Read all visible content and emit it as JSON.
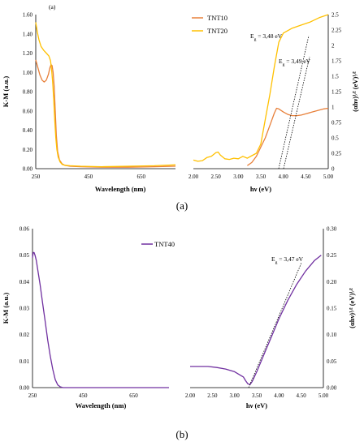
{
  "panel_a": {
    "caption": "(a)",
    "inset_label": "(a)",
    "legend": [
      "TNT10",
      "TNT20"
    ],
    "left": {
      "xlabel": "Wavelength (nm)",
      "ylabel": "K-M (a.u.)",
      "xticks": [
        "250",
        "450",
        "650"
      ],
      "yticks": [
        "0.00",
        "0.20",
        "0.40",
        "0.60",
        "0.80",
        "1.00",
        "1.20",
        "1.40",
        "1.60"
      ]
    },
    "right": {
      "xlabel": "hν (eV)",
      "ylabel": "(αhν)¹⁄² (eV)¹⁄²",
      "xticks": [
        "2.00",
        "2.50",
        "3.00",
        "3.50",
        "4.00",
        "4.50",
        "5.00"
      ],
      "yticks": [
        "0",
        "0.25",
        "0.5",
        "0.75",
        "1",
        "1.25",
        "1.5",
        "1.75",
        "2",
        "2.25",
        "2.5"
      ],
      "ann1": "E",
      "ann1_sub": "g",
      "ann1_val": " = 3,48 eV",
      "ann2": "E",
      "ann2_sub": "g",
      "ann2_val": " = 3,49 eV"
    }
  },
  "panel_b": {
    "caption": "(b)",
    "legend": [
      "TNT40"
    ],
    "left": {
      "xlabel": "Wavelength (nm)",
      "ylabel": "K-M (a.u.)",
      "xticks": [
        "250",
        "450",
        "650"
      ],
      "yticks": [
        "0.00",
        "0.01",
        "0.02",
        "0.03",
        "0.04",
        "0.05",
        "0.06"
      ]
    },
    "right": {
      "xlabel": "hν (eV)",
      "ylabel": "(αhν)¹⁄² (eV)¹⁄²",
      "xticks": [
        "2.00",
        "2.50",
        "3.00",
        "3.50",
        "4.00",
        "4.50",
        "5.00"
      ],
      "yticks": [
        "0.00",
        "0.05",
        "0.10",
        "0.15",
        "0.20",
        "0.25",
        "0.30"
      ],
      "ann1": "E",
      "ann1_sub": "g",
      "ann1_val": " = 3,47 eV"
    }
  },
  "colors": {
    "TNT10": "#e8803a",
    "TNT20": "#ffc000",
    "TNT40": "#7030a0",
    "fit": "#000000",
    "axis": "#000000"
  },
  "chart_data": [
    {
      "type": "line",
      "xlabel": "Wavelength (nm)",
      "ylabel": "K-M (a.u.)",
      "xlim": [
        250,
        780
      ],
      "ylim": [
        0,
        1.6
      ],
      "series": [
        {
          "name": "TNT10",
          "x": [
            250,
            258,
            266,
            274,
            282,
            290,
            298,
            304,
            308,
            312,
            316,
            320,
            324,
            328,
            333,
            340,
            350,
            360,
            380,
            420,
            500,
            600,
            700,
            780
          ],
          "y": [
            1.13,
            1.05,
            0.97,
            0.92,
            0.9,
            0.92,
            0.98,
            1.05,
            1.08,
            1.07,
            1.0,
            0.85,
            0.6,
            0.35,
            0.18,
            0.09,
            0.05,
            0.035,
            0.025,
            0.02,
            0.015,
            0.015,
            0.02,
            0.025
          ]
        },
        {
          "name": "TNT20",
          "x": [
            250,
            256,
            262,
            270,
            280,
            290,
            300,
            306,
            310,
            314,
            318,
            322,
            326,
            330,
            335,
            342,
            350,
            360,
            380,
            420,
            500,
            600,
            700,
            780
          ],
          "y": [
            1.52,
            1.42,
            1.34,
            1.27,
            1.23,
            1.2,
            1.17,
            1.12,
            1.03,
            0.9,
            0.72,
            0.5,
            0.32,
            0.2,
            0.12,
            0.07,
            0.045,
            0.035,
            0.03,
            0.025,
            0.02,
            0.025,
            0.03,
            0.04
          ]
        }
      ]
    },
    {
      "type": "line",
      "xlabel": "hν (eV)",
      "ylabel": "(αhν)¹⁄² (eV)¹⁄²",
      "xlim": [
        2.0,
        5.0
      ],
      "ylim": [
        0,
        2.5
      ],
      "annotations": [
        "Eg = 3,48 eV",
        "Eg = 3,49 eV"
      ],
      "series": [
        {
          "name": "TNT10",
          "x": [
            3.2,
            3.3,
            3.4,
            3.5,
            3.6,
            3.7,
            3.8,
            3.85,
            3.9,
            4.0,
            4.1,
            4.2,
            4.3,
            4.4,
            4.5,
            4.6,
            4.7,
            4.8,
            4.9,
            5.0
          ],
          "y": [
            0.05,
            0.1,
            0.2,
            0.35,
            0.5,
            0.7,
            0.9,
            0.98,
            0.97,
            0.92,
            0.88,
            0.86,
            0.86,
            0.87,
            0.89,
            0.91,
            0.93,
            0.95,
            0.97,
            0.98
          ]
        },
        {
          "name": "TNT20",
          "x": [
            2.0,
            2.1,
            2.2,
            2.3,
            2.4,
            2.5,
            2.55,
            2.6,
            2.7,
            2.8,
            2.9,
            3.0,
            3.1,
            3.2,
            3.3,
            3.4,
            3.5,
            3.6,
            3.7,
            3.8,
            3.9,
            4.0,
            4.2,
            4.4,
            4.6,
            4.8,
            5.0
          ],
          "y": [
            0.14,
            0.12,
            0.13,
            0.18,
            0.2,
            0.26,
            0.27,
            0.22,
            0.16,
            0.15,
            0.17,
            0.16,
            0.2,
            0.17,
            0.21,
            0.25,
            0.4,
            0.8,
            1.2,
            1.65,
            2.05,
            2.2,
            2.28,
            2.33,
            2.38,
            2.45,
            2.5
          ]
        }
      ]
    },
    {
      "type": "line",
      "xlabel": "Wavelength (nm)",
      "ylabel": "K-M (a.u.)",
      "xlim": [
        250,
        790
      ],
      "ylim": [
        0,
        0.06
      ],
      "series": [
        {
          "name": "TNT40",
          "x": [
            250,
            253,
            256,
            260,
            265,
            270,
            280,
            290,
            300,
            310,
            320,
            330,
            340,
            350,
            360,
            370,
            400,
            500,
            600,
            700,
            790
          ],
          "y": [
            0.049,
            0.051,
            0.051,
            0.05,
            0.048,
            0.045,
            0.039,
            0.032,
            0.025,
            0.018,
            0.012,
            0.007,
            0.003,
            0.001,
            0.0003,
            0.0,
            0.0,
            0.0,
            0.0,
            0.0,
            0.0
          ]
        }
      ]
    },
    {
      "type": "line",
      "xlabel": "hν (eV)",
      "ylabel": "(αhν)¹⁄² (eV)¹⁄²",
      "xlim": [
        2.0,
        5.0
      ],
      "ylim": [
        0,
        0.3
      ],
      "annotations": [
        "Eg = 3,47 eV"
      ],
      "series": [
        {
          "name": "TNT40",
          "x": [
            2.0,
            2.2,
            2.4,
            2.6,
            2.8,
            3.0,
            3.1,
            3.2,
            3.25,
            3.3,
            3.35,
            3.4,
            3.5,
            3.6,
            3.7,
            3.8,
            3.9,
            4.0,
            4.2,
            4.4,
            4.6,
            4.8,
            4.95
          ],
          "y": [
            0.04,
            0.04,
            0.04,
            0.038,
            0.035,
            0.03,
            0.025,
            0.02,
            0.013,
            0.007,
            0.006,
            0.012,
            0.03,
            0.05,
            0.07,
            0.09,
            0.11,
            0.13,
            0.165,
            0.195,
            0.22,
            0.24,
            0.25
          ]
        }
      ]
    }
  ]
}
